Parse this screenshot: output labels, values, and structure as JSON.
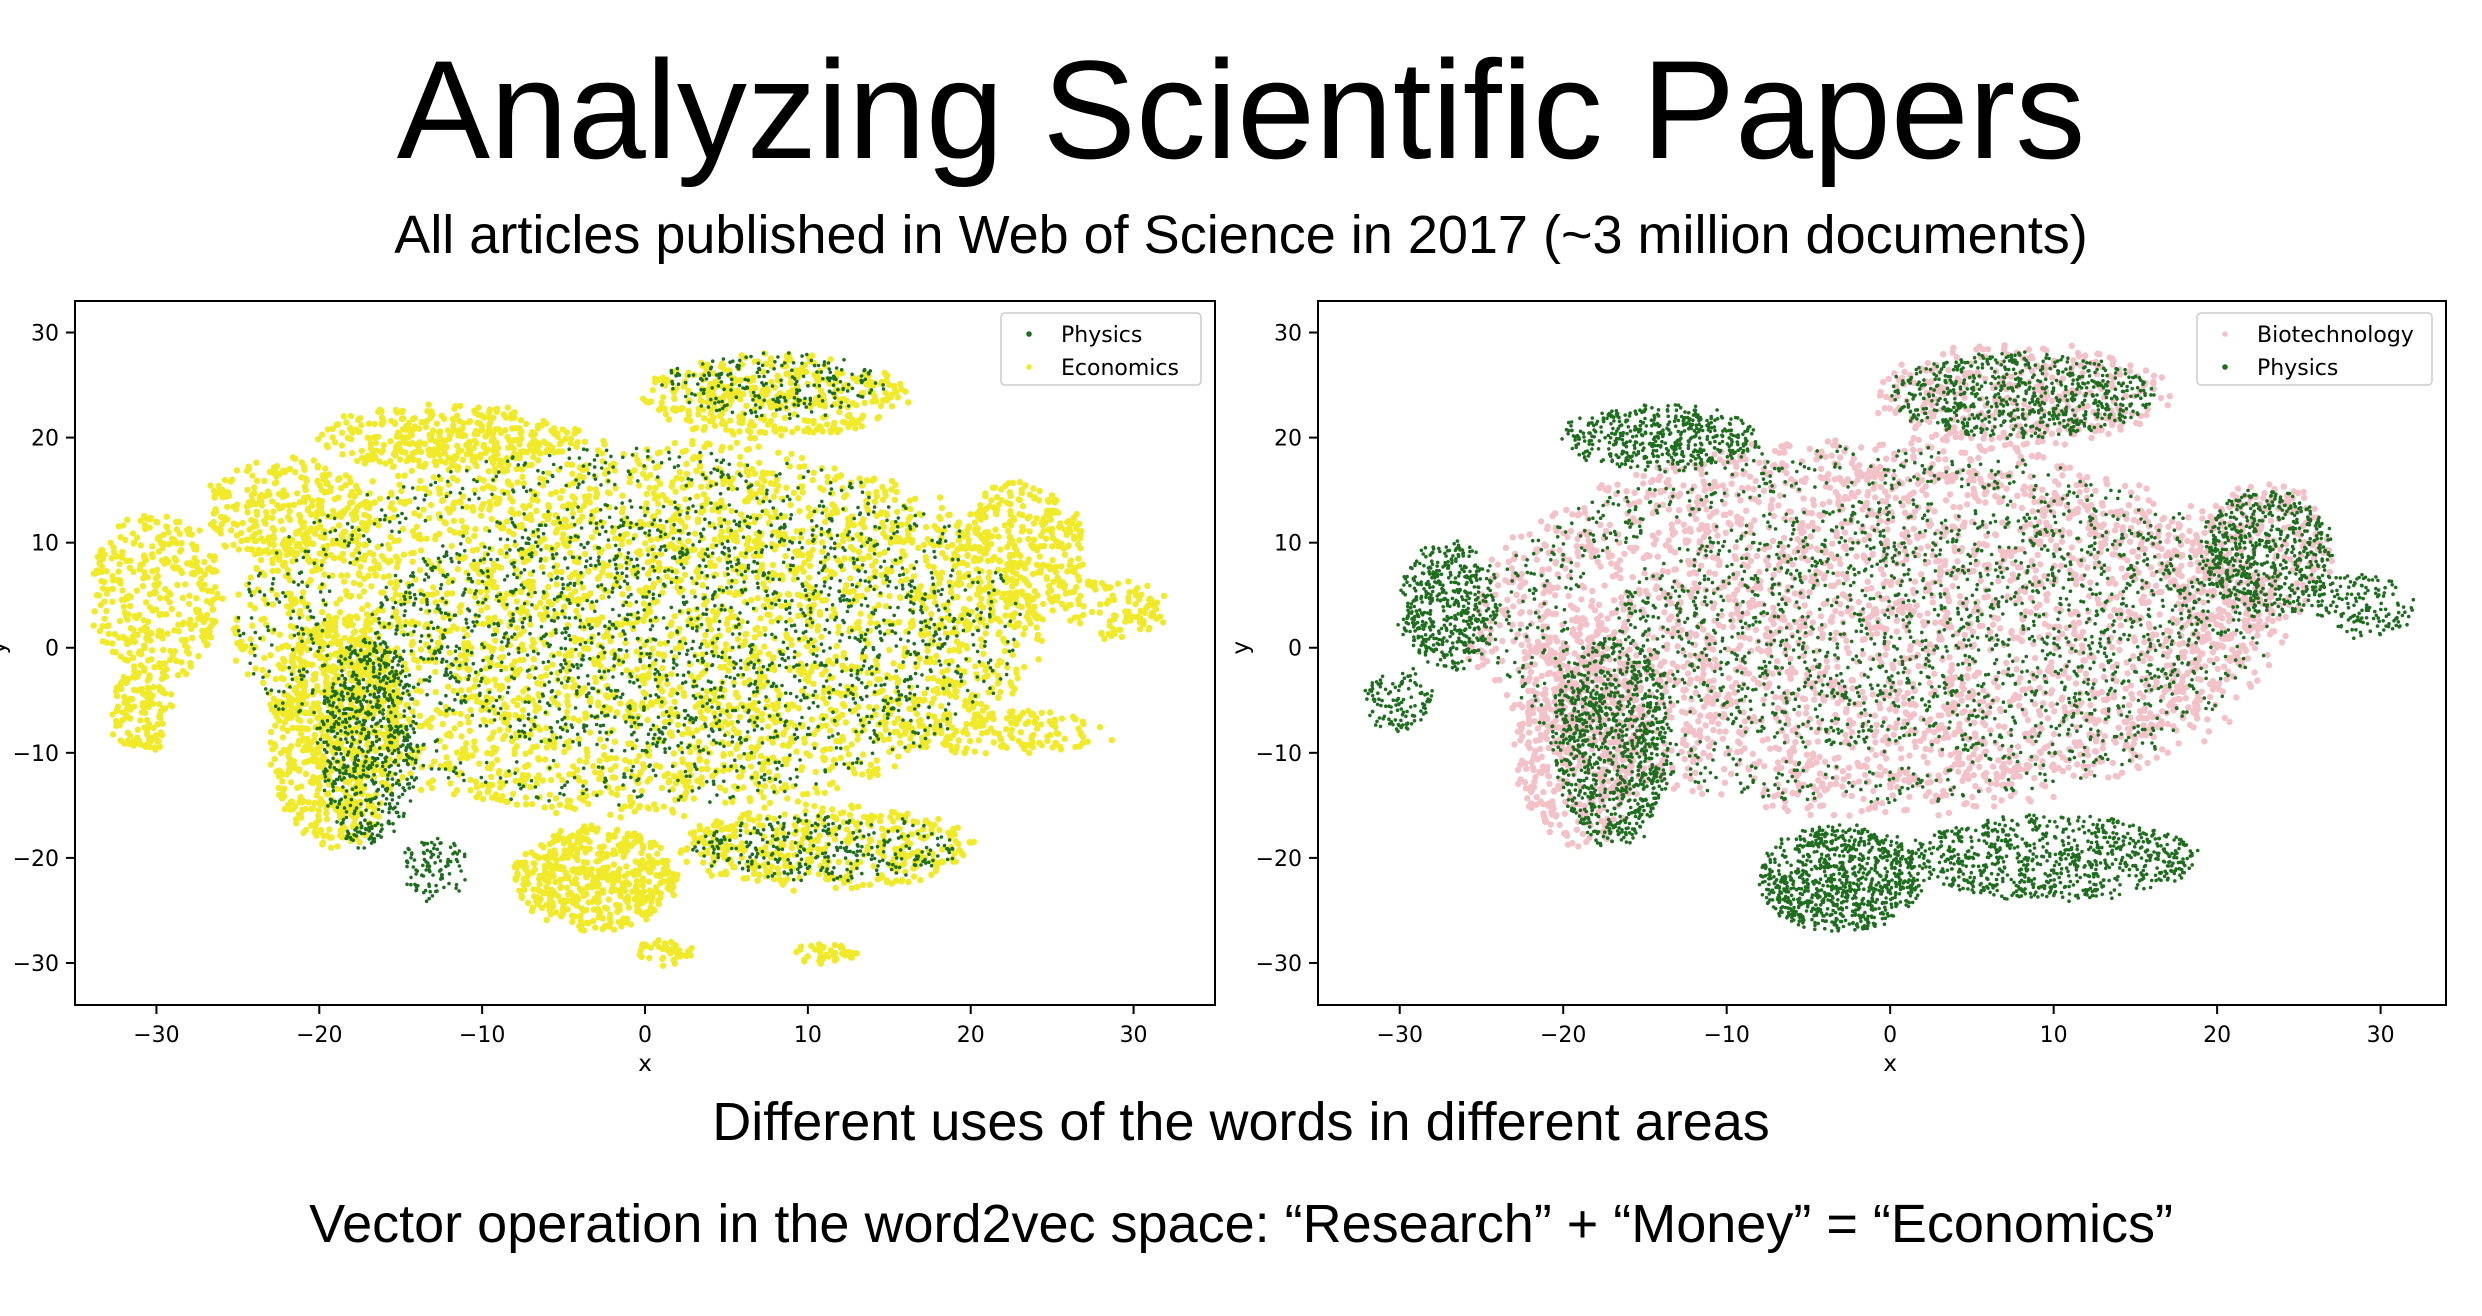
{
  "slide": {
    "title": "Analyzing Scientific Papers",
    "subtitle": "All articles published in Web of Science in 2017 (~3 million documents)",
    "caption_1": "Different uses of the words in different areas",
    "caption_2": "Vector operation in the word2vec space: “Research” + “Money” = “Economics”"
  },
  "colors": {
    "physics": "#1f6e1f",
    "economics": "#f0ea2a",
    "biotechnology": "#f3c1c8",
    "axes": "#000000"
  },
  "chart_data": [
    {
      "type": "scatter",
      "title": "",
      "xlabel": "x",
      "ylabel": "y",
      "xlim": [
        -35,
        35
      ],
      "ylim": [
        -34,
        33
      ],
      "xticks": [
        -30,
        -20,
        -10,
        0,
        10,
        20,
        30
      ],
      "yticks": [
        -30,
        -20,
        -10,
        0,
        10,
        20,
        30
      ],
      "xtick_labels": [
        "−30",
        "−20",
        "−10",
        "0",
        "10",
        "20",
        "30"
      ],
      "ytick_labels": [
        "−30",
        "−20",
        "−10",
        "0",
        "10",
        "20",
        "30"
      ],
      "grid": false,
      "legend_position": "top-right",
      "series": [
        {
          "name": "Physics",
          "color": "#1f6e1f"
        },
        {
          "name": "Economics",
          "color": "#f0ea2a"
        }
      ],
      "draw_order": [
        "Economics",
        "Physics"
      ],
      "clusters": [
        {
          "series": "Economics",
          "cx": 0,
          "cy": 2,
          "rx": 20,
          "ry": 14,
          "n": 2200,
          "kind": "fill"
        },
        {
          "series": "Physics",
          "cx": 1,
          "cy": 2,
          "rx": 18,
          "ry": 12,
          "n": 1600,
          "kind": "fill"
        },
        {
          "series": "Economics",
          "cx": -0.5,
          "cy": 2,
          "rx": 25,
          "ry": 18,
          "n": 1100,
          "kind": "ring"
        },
        {
          "series": "Physics",
          "cx": -1,
          "cy": 2,
          "rx": 24,
          "ry": 17,
          "n": 700,
          "kind": "ring"
        },
        {
          "series": "Economics",
          "cx": -19,
          "cy": -8,
          "rx": 4,
          "ry": 11,
          "n": 700,
          "kind": "fill"
        },
        {
          "series": "Physics",
          "cx": -17,
          "cy": -9,
          "rx": 3,
          "ry": 10,
          "n": 600,
          "kind": "fill"
        },
        {
          "series": "Economics",
          "cx": -30,
          "cy": 5,
          "rx": 4,
          "ry": 8,
          "n": 350,
          "kind": "fill"
        },
        {
          "series": "Economics",
          "cx": -22,
          "cy": 13,
          "rx": 5,
          "ry": 5,
          "n": 300,
          "kind": "fill"
        },
        {
          "series": "Economics",
          "cx": -31,
          "cy": -6,
          "rx": 2,
          "ry": 4,
          "n": 120,
          "kind": "fill"
        },
        {
          "series": "Economics",
          "cx": -12,
          "cy": 20,
          "rx": 8,
          "ry": 3,
          "n": 350,
          "kind": "fill"
        },
        {
          "series": "Economics",
          "cx": 8,
          "cy": 24,
          "rx": 8,
          "ry": 4,
          "n": 400,
          "kind": "fill"
        },
        {
          "series": "Physics",
          "cx": 8,
          "cy": 25,
          "rx": 7,
          "ry": 3,
          "n": 220,
          "kind": "fill"
        },
        {
          "series": "Economics",
          "cx": 23,
          "cy": 9,
          "rx": 4,
          "ry": 7,
          "n": 350,
          "kind": "fill"
        },
        {
          "series": "Economics",
          "cx": 29,
          "cy": 4,
          "rx": 3,
          "ry": 3,
          "n": 100,
          "kind": "fill"
        },
        {
          "series": "Economics",
          "cx": -3,
          "cy": -22,
          "rx": 5,
          "ry": 5,
          "n": 500,
          "kind": "fill"
        },
        {
          "series": "Economics",
          "cx": 11,
          "cy": -19,
          "rx": 9,
          "ry": 4,
          "n": 400,
          "kind": "fill"
        },
        {
          "series": "Physics",
          "cx": 11,
          "cy": -19,
          "rx": 8,
          "ry": 3,
          "n": 300,
          "kind": "fill"
        },
        {
          "series": "Economics",
          "cx": 22,
          "cy": -8,
          "rx": 7,
          "ry": 2,
          "n": 150,
          "kind": "fill"
        },
        {
          "series": "Economics",
          "cx": 11,
          "cy": -29,
          "rx": 2,
          "ry": 1,
          "n": 40,
          "kind": "fill"
        },
        {
          "series": "Economics",
          "cx": 1,
          "cy": -29,
          "rx": 2,
          "ry": 1,
          "n": 40,
          "kind": "fill"
        },
        {
          "series": "Physics",
          "cx": -13,
          "cy": -21,
          "rx": 2,
          "ry": 3,
          "n": 100,
          "kind": "fill"
        }
      ]
    },
    {
      "type": "scatter",
      "title": "",
      "xlabel": "x",
      "ylabel": "y",
      "xlim": [
        -35,
        34
      ],
      "ylim": [
        -34,
        33
      ],
      "xticks": [
        -30,
        -20,
        -10,
        0,
        10,
        20,
        30
      ],
      "yticks": [
        -30,
        -20,
        -10,
        0,
        10,
        20,
        30
      ],
      "xtick_labels": [
        "−30",
        "−20",
        "−10",
        "0",
        "10",
        "20",
        "30"
      ],
      "ytick_labels": [
        "−30",
        "−20",
        "−10",
        "0",
        "10",
        "20",
        "30"
      ],
      "grid": false,
      "legend_position": "top-right",
      "series": [
        {
          "name": "Biotechnology",
          "color": "#f3c1c8"
        },
        {
          "name": "Physics",
          "color": "#1f6e1f"
        }
      ],
      "draw_order": [
        "Biotechnology",
        "Physics"
      ],
      "clusters": [
        {
          "series": "Biotechnology",
          "cx": 1,
          "cy": 2,
          "rx": 21,
          "ry": 15,
          "n": 2200,
          "kind": "fill"
        },
        {
          "series": "Physics",
          "cx": 1,
          "cy": 2,
          "rx": 18,
          "ry": 12,
          "n": 1600,
          "kind": "fill"
        },
        {
          "series": "Biotechnology",
          "cx": -1,
          "cy": 2,
          "rx": 25,
          "ry": 18,
          "n": 1000,
          "kind": "ring"
        },
        {
          "series": "Physics",
          "cx": -1,
          "cy": 2,
          "rx": 24,
          "ry": 17,
          "n": 800,
          "kind": "ring"
        },
        {
          "series": "Biotechnology",
          "cx": -19,
          "cy": -8,
          "rx": 4,
          "ry": 11,
          "n": 500,
          "kind": "fill"
        },
        {
          "series": "Physics",
          "cx": -17,
          "cy": -9,
          "rx": 3.5,
          "ry": 10,
          "n": 900,
          "kind": "fill"
        },
        {
          "series": "Physics",
          "cx": -27,
          "cy": 4,
          "rx": 3,
          "ry": 6,
          "n": 500,
          "kind": "fill"
        },
        {
          "series": "Physics",
          "cx": -14,
          "cy": 20,
          "rx": 6,
          "ry": 3,
          "n": 500,
          "kind": "fill"
        },
        {
          "series": "Biotechnology",
          "cx": 8,
          "cy": 24,
          "rx": 9,
          "ry": 5,
          "n": 350,
          "kind": "fill"
        },
        {
          "series": "Physics",
          "cx": 8,
          "cy": 24,
          "rx": 8,
          "ry": 4,
          "n": 700,
          "kind": "fill"
        },
        {
          "series": "Biotechnology",
          "cx": 23,
          "cy": 9,
          "rx": 4,
          "ry": 7,
          "n": 200,
          "kind": "fill"
        },
        {
          "series": "Physics",
          "cx": 23,
          "cy": 9,
          "rx": 4,
          "ry": 6,
          "n": 600,
          "kind": "fill"
        },
        {
          "series": "Physics",
          "cx": -3,
          "cy": -22,
          "rx": 5,
          "ry": 5,
          "n": 900,
          "kind": "fill"
        },
        {
          "series": "Physics",
          "cx": 10,
          "cy": -20,
          "rx": 9,
          "ry": 4,
          "n": 800,
          "kind": "fill"
        },
        {
          "series": "Physics",
          "cx": -30,
          "cy": -5,
          "rx": 2,
          "ry": 3,
          "n": 120,
          "kind": "fill"
        },
        {
          "series": "Physics",
          "cx": 29,
          "cy": 4,
          "rx": 3,
          "ry": 3,
          "n": 150,
          "kind": "fill"
        }
      ]
    }
  ]
}
